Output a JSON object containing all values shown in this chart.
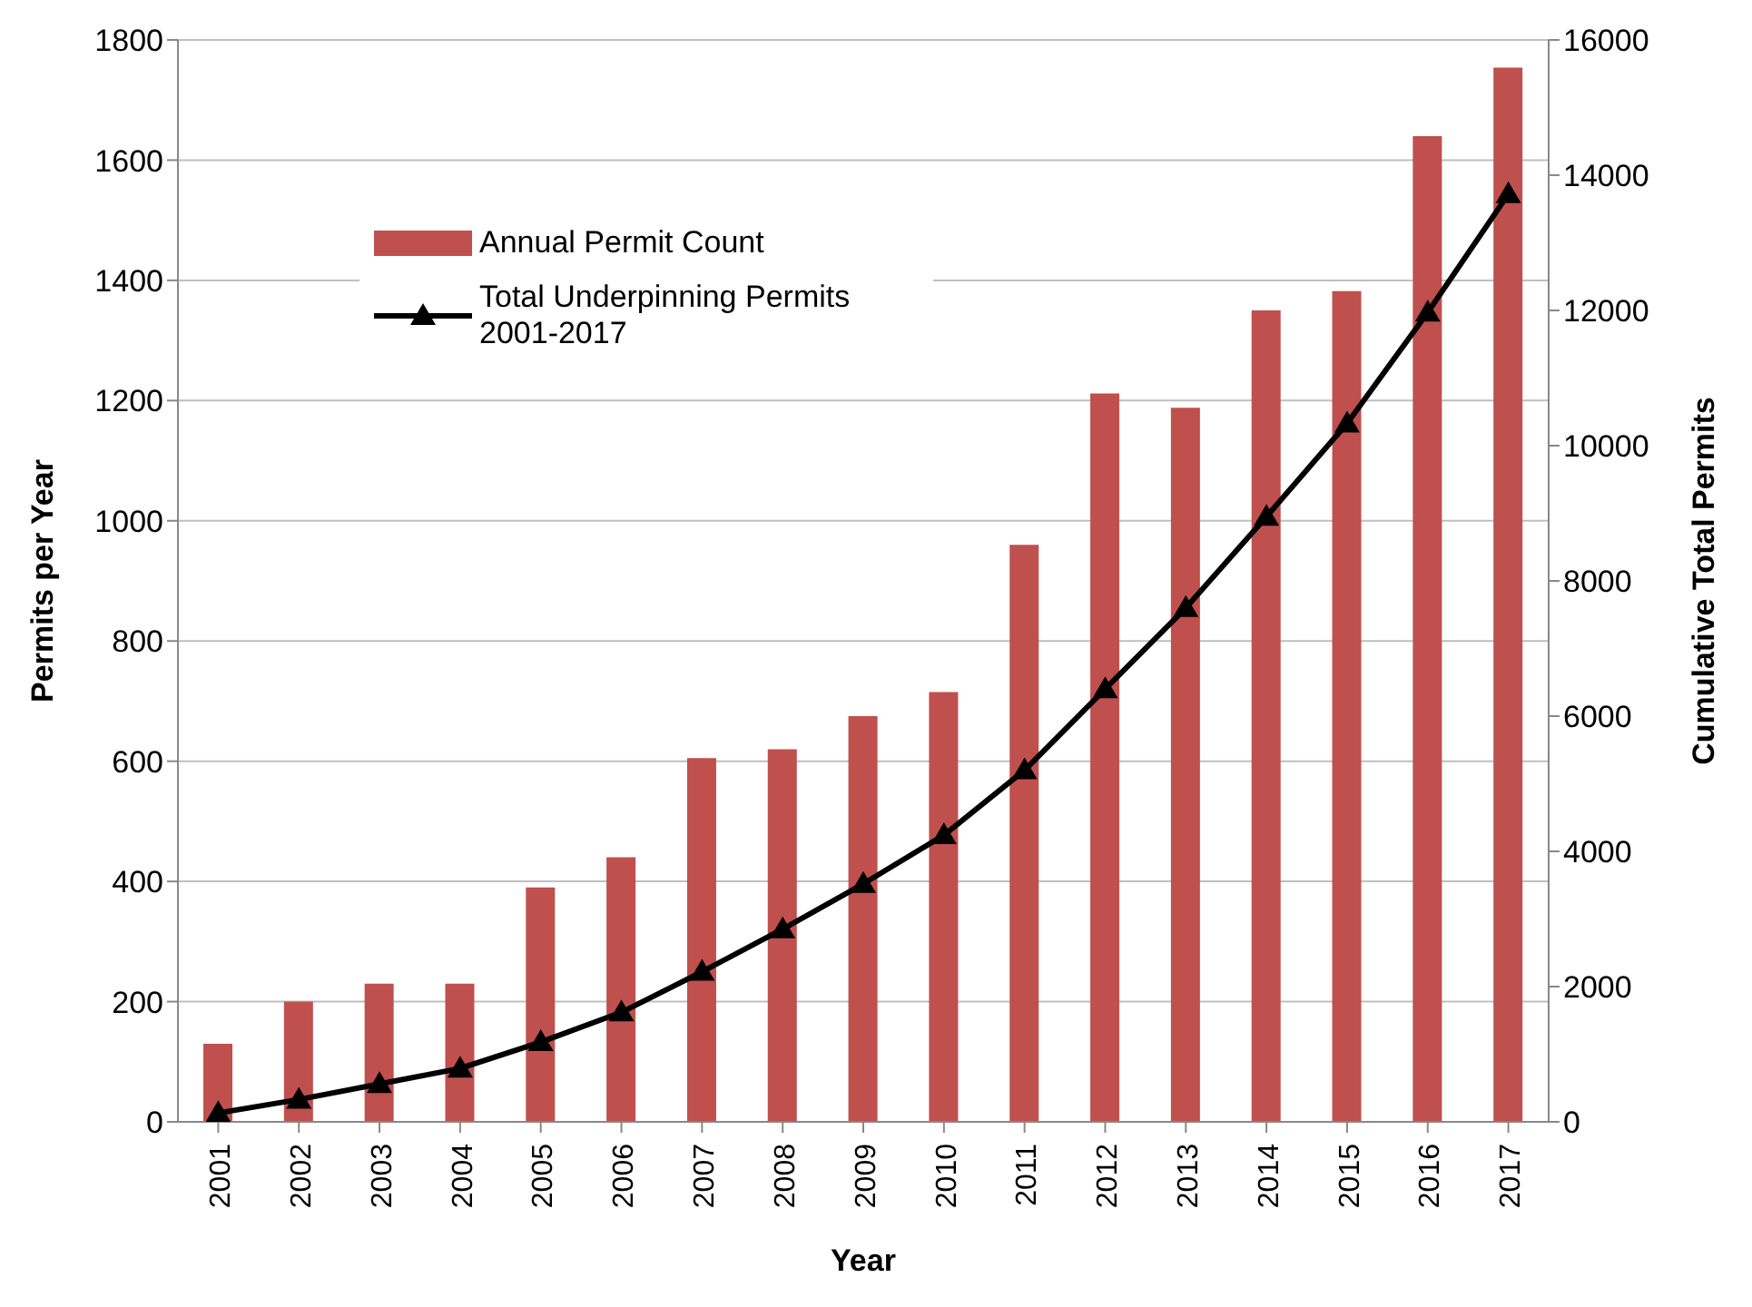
{
  "chart_data": {
    "type": "bar",
    "xlabel": "Year",
    "ylabel": "Permits per Year",
    "y2label": "Cumulative Total Permits",
    "categories": [
      "2001",
      "2002",
      "2003",
      "2004",
      "2005",
      "2006",
      "2007",
      "2008",
      "2009",
      "2010",
      "2011",
      "2012",
      "2013",
      "2014",
      "2015",
      "2016",
      "2017"
    ],
    "series": [
      {
        "name": "Annual Permit Count",
        "color": "#c0504d",
        "values": [
          130,
          200,
          230,
          230,
          390,
          440,
          605,
          620,
          675,
          715,
          960,
          1212,
          1188,
          1350,
          1382,
          1640,
          1754
        ]
      },
      {
        "name": "Total Underpinning Permits 2001-2017",
        "type": "line",
        "axis": "y2",
        "color": "#000000",
        "marker": "triangle",
        "values": [
          130,
          330,
          560,
          790,
          1180,
          1620,
          2220,
          2850,
          3520,
          4240,
          5200,
          6400,
          7600,
          8950,
          10330,
          11970,
          13720
        ]
      }
    ],
    "ylim": [
      0,
      1800
    ],
    "yticks": [
      0,
      200,
      400,
      600,
      800,
      1000,
      1200,
      1400,
      1600,
      1800
    ],
    "y2lim": [
      0,
      16000
    ],
    "y2ticks": [
      0,
      2000,
      4000,
      6000,
      8000,
      10000,
      12000,
      14000,
      16000
    ],
    "grid": "y",
    "legend": "top left"
  }
}
